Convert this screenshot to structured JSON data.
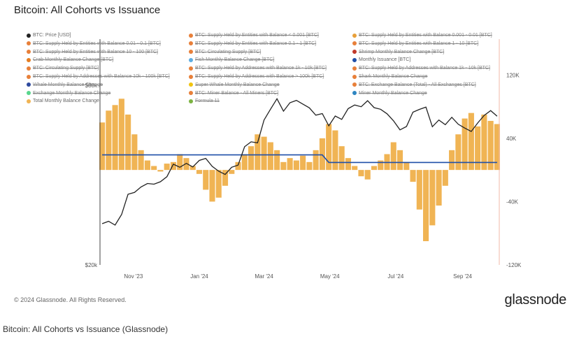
{
  "page": {
    "title": "Bitcoin: All Cohorts vs Issuance"
  },
  "legend": [
    {
      "label": "BTC: Price [USD]",
      "color": "#222222",
      "off": false
    },
    {
      "label": "BTC: Supply Held by Entities with Balance < 0.001 [BTC]",
      "color": "#e8803a",
      "off": true
    },
    {
      "label": "BTC: Supply Held by Entities with Balance 0.001 - 0.01 [BTC]",
      "color": "#e8a03a",
      "off": true
    },
    {
      "label": "BTC: Supply Held by Entities with Balance 0.01 - 0.1 [BTC]",
      "color": "#e8803a",
      "off": true
    },
    {
      "label": "BTC: Supply Held by Entities with Balance 0.1 - 1 [BTC]",
      "color": "#e8803a",
      "off": true
    },
    {
      "label": "BTC: Supply Held by Entities with Balance 1 - 10 [BTC]",
      "color": "#e8803a",
      "off": true
    },
    {
      "label": "BTC: Supply Held by Entities with Balance 10 - 100 [BTC]",
      "color": "#e8803a",
      "off": true
    },
    {
      "label": "BTC: Circulating Supply [BTC]",
      "color": "#e8803a",
      "off": true
    },
    {
      "label": "Shrimp Monthly Balance Change [BTC]",
      "color": "#c0392b",
      "off": true
    },
    {
      "label": "Crab Monthly Balance Change [BTC]",
      "color": "#e67e22",
      "off": true
    },
    {
      "label": "Fish Monthly Balance Change [BTC]",
      "color": "#5dade2",
      "off": true
    },
    {
      "label": "Monthly Issuance [BTC]",
      "color": "#1f4fa8",
      "off": false
    },
    {
      "label": "BTC: Circulating Supply [BTC]",
      "color": "#e8803a",
      "off": true
    },
    {
      "label": "BTC: Supply Held by Addresses with Balance 1k - 10k [BTC]",
      "color": "#e8803a",
      "off": true
    },
    {
      "label": "BTC: Supply Held by Addresses with Balance 1k - 10k [BTC]",
      "color": "#e8803a",
      "off": true
    },
    {
      "label": "BTC: Supply Held by Addresses with Balance 10k - 100k [BTC]",
      "color": "#e8803a",
      "off": true
    },
    {
      "label": "BTC: Supply Held by Addresses with Balance > 100k [BTC]",
      "color": "#e8803a",
      "off": true
    },
    {
      "label": "Shark Monthly Balance Change",
      "color": "#e8803a",
      "off": true
    },
    {
      "label": "Whale Monthly Balance Change",
      "color": "#2e4a9e",
      "off": true
    },
    {
      "label": "Super Whale Monthly Balance Change",
      "color": "#f1c40f",
      "off": true
    },
    {
      "label": "BTC: Exchange Balance (Total) - All Exchanges [BTC]",
      "color": "#e8803a",
      "off": true
    },
    {
      "label": "Exchange Monthly Balance Change",
      "color": "#58d68d",
      "off": true
    },
    {
      "label": "BTC: Miner Balance - All Miners [BTC]",
      "color": "#e8803a",
      "off": true
    },
    {
      "label": "Miner Monthly Balance Change",
      "color": "#2e86c1",
      "off": true
    },
    {
      "label": "Total Monthly Balance Change",
      "color": "#f0b454",
      "off": false
    },
    {
      "label": "Formula 11",
      "color": "#7cb342",
      "off": true
    }
  ],
  "chart_data": {
    "type": "bar",
    "x_dates": [
      "2023-10-03",
      "2023-10-09",
      "2023-10-15",
      "2023-10-21",
      "2023-10-27",
      "2023-11-02",
      "2023-11-08",
      "2023-11-14",
      "2023-11-20",
      "2023-11-26",
      "2023-12-02",
      "2023-12-08",
      "2023-12-14",
      "2023-12-20",
      "2023-12-26",
      "2024-01-01",
      "2024-01-07",
      "2024-01-13",
      "2024-01-19",
      "2024-01-25",
      "2024-01-31",
      "2024-02-06",
      "2024-02-12",
      "2024-02-18",
      "2024-02-24",
      "2024-03-01",
      "2024-03-07",
      "2024-03-13",
      "2024-03-19",
      "2024-03-25",
      "2024-03-31",
      "2024-04-06",
      "2024-04-12",
      "2024-04-18",
      "2024-04-24",
      "2024-04-30",
      "2024-05-06",
      "2024-05-12",
      "2024-05-18",
      "2024-05-24",
      "2024-05-30",
      "2024-06-05",
      "2024-06-11",
      "2024-06-17",
      "2024-06-23",
      "2024-06-29",
      "2024-07-05",
      "2024-07-11",
      "2024-07-17",
      "2024-07-23",
      "2024-07-29",
      "2024-08-04",
      "2024-08-10",
      "2024-08-16",
      "2024-08-22",
      "2024-08-28",
      "2024-09-03",
      "2024-09-09",
      "2024-09-15",
      "2024-09-21",
      "2024-09-27",
      "2024-10-03"
    ],
    "x_ticks": [
      "Nov '23",
      "Jan '24",
      "Mar '24",
      "May '24",
      "Jul '24",
      "Sep '24"
    ],
    "x_tick_dates": [
      "2023-11-01",
      "2024-01-01",
      "2024-03-01",
      "2024-05-01",
      "2024-07-01",
      "2024-09-01"
    ],
    "x_range": [
      "2023-10-01",
      "2024-10-05"
    ],
    "series": [
      {
        "name": "Total Monthly Balance Change",
        "type": "bar",
        "axis": "right",
        "color": "#f0b454",
        "values": [
          60000,
          75000,
          82000,
          90000,
          70000,
          45000,
          25000,
          12000,
          5000,
          -2000,
          8000,
          10000,
          20000,
          15000,
          5000,
          -5000,
          -25000,
          -40000,
          -35000,
          -20000,
          -5000,
          10000,
          20000,
          30000,
          45000,
          42000,
          35000,
          25000,
          10000,
          15000,
          12000,
          18000,
          10000,
          25000,
          40000,
          58000,
          50000,
          30000,
          15000,
          5000,
          -8000,
          -12000,
          5000,
          12000,
          20000,
          35000,
          25000,
          10000,
          -15000,
          -50000,
          -90000,
          -70000,
          -45000,
          -20000,
          25000,
          45000,
          65000,
          72000,
          55000,
          70000,
          62000,
          58000
        ]
      },
      {
        "name": "Monthly Issuance [BTC]",
        "type": "line",
        "axis": "right",
        "color": "#1f4fa8",
        "values": [
          19000,
          19000,
          19000,
          19000,
          19000,
          19000,
          19000,
          19000,
          19000,
          19000,
          19000,
          19000,
          19000,
          19000,
          19000,
          19000,
          19000,
          19000,
          19000,
          19000,
          19000,
          19000,
          19000,
          19000,
          19000,
          19000,
          19000,
          19000,
          19000,
          19000,
          19000,
          19000,
          19000,
          19000,
          19000,
          9500,
          9500,
          9500,
          9500,
          9500,
          9500,
          9500,
          9500,
          9500,
          9500,
          9500,
          9500,
          9500,
          9500,
          9500,
          9500,
          9500,
          9500,
          9500,
          9500,
          9500,
          9500,
          9500,
          9500,
          9500,
          9500,
          9500
        ]
      },
      {
        "name": "BTC: Price [USD]",
        "type": "line",
        "axis": "left",
        "color": "#222222",
        "values": [
          27500,
          28000,
          27200,
          29500,
          34500,
          35000,
          36500,
          37500,
          37300,
          38000,
          39500,
          43500,
          42500,
          43800,
          42600,
          44800,
          45500,
          42800,
          41200,
          40200,
          42500,
          43200,
          49800,
          51700,
          51300,
          61200,
          66500,
          72100,
          65500,
          69900,
          71200,
          69200,
          67200,
          63500,
          64300,
          58500,
          63100,
          61500,
          66800,
          68700,
          67800,
          71000,
          67300,
          66500,
          64200,
          60800,
          56700,
          58200,
          65000,
          66400,
          67600,
          58100,
          61200,
          59000,
          62500,
          59200,
          57500,
          56000,
          59800,
          63400,
          65800,
          63000
        ]
      }
    ],
    "y_left": {
      "range": [
        20000,
        80000
      ],
      "ticks": [
        "$20k",
        "$80k"
      ],
      "scale": "log"
    },
    "y_right": {
      "range": [
        -120000,
        160000
      ],
      "ticks": [
        "120K",
        "40K",
        "-40K",
        "-120K"
      ],
      "tick_values": [
        120000,
        40000,
        -40000,
        -120000
      ]
    },
    "grid": false,
    "legend_position": "top"
  },
  "footer": {
    "copyright": "© 2024 Glassnode. All Rights Reserved.",
    "logo": "glassnode"
  },
  "caption": "Bitcoin: All Cohorts vs Issuance (Glassnode)"
}
